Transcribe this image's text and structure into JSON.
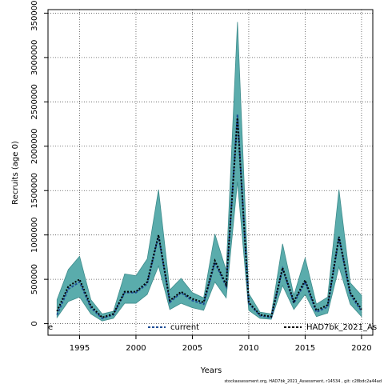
{
  "chart_data": {
    "type": "area",
    "title": "",
    "xlabel": "Years",
    "ylabel": "Recruits (age 0)",
    "xlim": [
      1992.2,
      2021.0
    ],
    "ylim": [
      -130000,
      3540000
    ],
    "x_ticks": [
      1995,
      2000,
      2005,
      2010,
      2015,
      2020
    ],
    "y_ticks": [
      0,
      500000,
      1000000,
      1500000,
      2000000,
      2500000,
      3000000,
      3500000
    ],
    "grid": true,
    "legend_placement": "bottom",
    "x": [
      1993,
      1994,
      1995,
      1996,
      1997,
      1998,
      1999,
      2000,
      2001,
      2002,
      2003,
      2004,
      2005,
      2006,
      2007,
      2008,
      2009,
      2010,
      2011,
      2012,
      2013,
      2014,
      2015,
      2016,
      2017,
      2018,
      2019,
      2020
    ],
    "series": [
      {
        "name": "current",
        "values": [
          100000,
          390000,
          470000,
          180000,
          60000,
          100000,
          350000,
          350000,
          450000,
          990000,
          240000,
          350000,
          260000,
          220000,
          690000,
          420000,
          2360000,
          230000,
          90000,
          70000,
          620000,
          230000,
          470000,
          130000,
          190000,
          970000,
          330000,
          140000
        ]
      },
      {
        "name": "HAD7bk_2021_As",
        "values": [
          140000,
          420000,
          500000,
          200000,
          70000,
          110000,
          360000,
          360000,
          470000,
          1000000,
          260000,
          360000,
          280000,
          240000,
          710000,
          440000,
          2320000,
          240000,
          100000,
          80000,
          630000,
          250000,
          490000,
          150000,
          210000,
          980000,
          350000,
          160000
        ]
      }
    ],
    "band": {
      "lower": [
        70000,
        250000,
        300000,
        110000,
        30000,
        60000,
        230000,
        230000,
        330000,
        650000,
        160000,
        230000,
        180000,
        150000,
        470000,
        290000,
        1600000,
        150000,
        60000,
        50000,
        430000,
        160000,
        330000,
        80000,
        120000,
        640000,
        220000,
        80000
      ],
      "upper": [
        270000,
        610000,
        760000,
        270000,
        110000,
        140000,
        560000,
        540000,
        730000,
        1510000,
        380000,
        510000,
        350000,
        290000,
        1010000,
        600000,
        3400000,
        340000,
        130000,
        110000,
        900000,
        320000,
        740000,
        220000,
        300000,
        1510000,
        460000,
        320000
      ]
    },
    "colors": {
      "band_fill": "#5aacac",
      "band_edge": "#3f8c8c",
      "current_line": "#1f4e96",
      "had_line": "#000000",
      "grid": "#555555"
    },
    "legend": {
      "left_fragment": "e",
      "entries": [
        "current",
        "HAD7bk_2021_As"
      ]
    },
    "footer": "stockassessment.org, HAD7bk_2021_Assessment, r14534 , git: c28bdc2a44ad"
  }
}
